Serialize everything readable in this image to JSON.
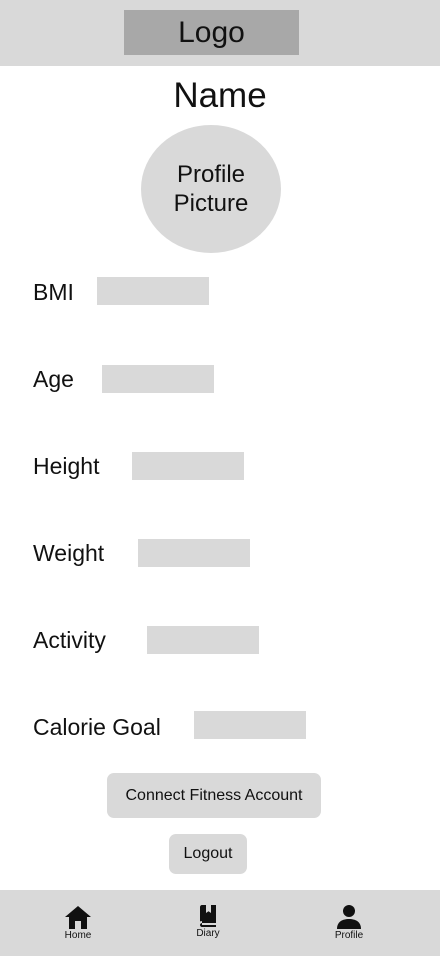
{
  "header": {
    "logo_text": "Logo"
  },
  "profile": {
    "name": "Name",
    "picture_line1": "Profile",
    "picture_line2": "Picture"
  },
  "fields": {
    "bmi": {
      "label": "BMI",
      "value": ""
    },
    "age": {
      "label": "Age",
      "value": ""
    },
    "height": {
      "label": "Height",
      "value": ""
    },
    "weight": {
      "label": "Weight",
      "value": ""
    },
    "activity": {
      "label": "Activity",
      "value": ""
    },
    "calorie_goal": {
      "label": "Calorie Goal",
      "value": ""
    }
  },
  "actions": {
    "connect_label": "Connect Fitness Account",
    "logout_label": "Logout"
  },
  "nav": {
    "home": {
      "label": "Home",
      "icon": "home-icon"
    },
    "diary": {
      "label": "Diary",
      "icon": "book-icon"
    },
    "profile": {
      "label": "Profile",
      "icon": "person-icon"
    }
  },
  "colors": {
    "panel_gray": "#d9d9d9",
    "logo_gray": "#a8a8a8",
    "text": "#111111",
    "background": "#ffffff"
  }
}
